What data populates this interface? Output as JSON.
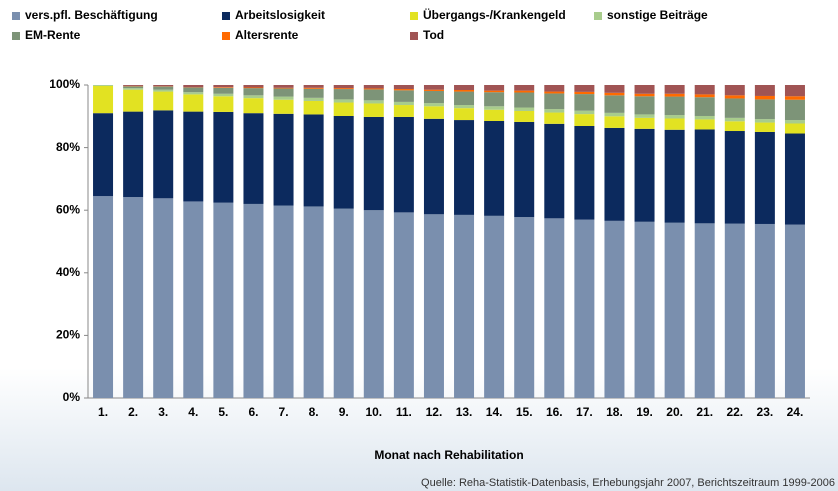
{
  "chart_data": {
    "type": "stacked_bar",
    "x_label": "Monat nach Rehabilitation",
    "source": "Quelle: Reha-Statistik-Datenbasis, Erhebungsjahr 2007, Berichtszeitraum 1999-2006",
    "categories": [
      "1.",
      "2.",
      "3.",
      "4.",
      "5.",
      "6.",
      "7.",
      "8.",
      "9.",
      "10.",
      "11.",
      "12.",
      "13.",
      "14.",
      "15.",
      "16.",
      "17.",
      "18.",
      "19.",
      "20.",
      "21.",
      "22.",
      "23.",
      "24."
    ],
    "ylim": [
      0,
      100
    ],
    "yticks": [
      {
        "value": 0,
        "label": "0%"
      },
      {
        "value": 20,
        "label": "20%"
      },
      {
        "value": 40,
        "label": "40%"
      },
      {
        "value": 60,
        "label": "60%"
      },
      {
        "value": 80,
        "label": "80%"
      },
      {
        "value": 100,
        "label": "100%"
      }
    ],
    "grid": false,
    "legend": "top",
    "series": [
      {
        "name": "vers.pfl. Beschäftigung",
        "color": "#7a8fae",
        "values": [
          64.5,
          64.2,
          63.8,
          62.8,
          62.4,
          62.0,
          61.5,
          61.2,
          60.5,
          60.0,
          59.3,
          58.7,
          58.5,
          58.2,
          57.8,
          57.4,
          57.0,
          56.6,
          56.3,
          56.0,
          55.8,
          55.7,
          55.6,
          55.4
        ]
      },
      {
        "name": "Arbeitslosigkeit",
        "color": "#0c2a5e",
        "values": [
          26.5,
          27.3,
          28.1,
          28.7,
          29.0,
          29.0,
          29.3,
          29.4,
          29.6,
          29.8,
          30.5,
          30.5,
          30.3,
          30.3,
          30.4,
          30.2,
          29.9,
          29.7,
          29.7,
          29.7,
          30.0,
          29.6,
          29.4,
          29.1
        ]
      },
      {
        "name": "Übergangs-/Krankengeld",
        "color": "#e2e222",
        "values": [
          8.7,
          7.0,
          6.0,
          5.5,
          5.0,
          4.8,
          4.5,
          4.3,
          4.3,
          4.3,
          3.8,
          4.0,
          3.8,
          3.6,
          3.5,
          3.6,
          3.8,
          3.7,
          3.5,
          3.6,
          3.2,
          3.1,
          3.0,
          3.2
        ]
      },
      {
        "name": "sonstige Beiträge",
        "color": "#a8cc8c",
        "values": [
          0.3,
          0.5,
          0.6,
          0.7,
          0.8,
          0.9,
          1.0,
          1.0,
          1.0,
          1.0,
          1.0,
          1.0,
          1.0,
          1.1,
          1.1,
          1.1,
          1.1,
          1.1,
          1.1,
          1.1,
          1.1,
          1.1,
          1.1,
          1.1
        ]
      },
      {
        "name": "EM-Rente",
        "color": "#7d9478",
        "values": [
          0.0,
          0.6,
          1.0,
          1.5,
          1.9,
          2.3,
          2.6,
          2.9,
          3.3,
          3.5,
          3.7,
          3.9,
          4.3,
          4.5,
          4.8,
          5.0,
          5.3,
          5.6,
          5.8,
          5.9,
          6.0,
          6.2,
          6.3,
          6.5
        ]
      },
      {
        "name": "Altersrente",
        "color": "#ff6a00",
        "values": [
          0.0,
          0.1,
          0.1,
          0.1,
          0.2,
          0.2,
          0.2,
          0.3,
          0.3,
          0.3,
          0.4,
          0.4,
          0.5,
          0.5,
          0.6,
          0.6,
          0.7,
          0.8,
          0.8,
          0.9,
          0.9,
          1.0,
          1.1,
          1.1
        ]
      },
      {
        "name": "Tod",
        "color": "#a05454",
        "values": [
          0.0,
          0.3,
          0.4,
          0.7,
          0.7,
          0.8,
          0.9,
          0.9,
          1.0,
          1.1,
          1.3,
          1.5,
          1.6,
          1.8,
          1.8,
          2.1,
          2.2,
          2.5,
          2.8,
          2.8,
          3.0,
          3.3,
          3.5,
          3.6
        ]
      }
    ]
  }
}
